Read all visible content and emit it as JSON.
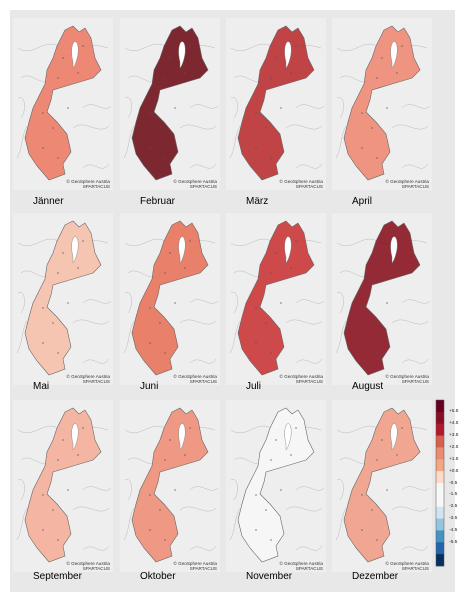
{
  "credit": {
    "line1": "© GeoSphere Austria",
    "line2": "SPARTACUS"
  },
  "months": [
    {
      "label": "Jänner",
      "fill": "#ec7f69",
      "opacity": 0.92
    },
    {
      "label": "Februar",
      "fill": "#761c25",
      "opacity": 0.95
    },
    {
      "label": "März",
      "fill": "#bc3436",
      "opacity": 0.92
    },
    {
      "label": "April",
      "fill": "#ee8a73",
      "opacity": 0.9
    },
    {
      "label": "Mai",
      "fill": "#f6c1ad",
      "opacity": 0.92
    },
    {
      "label": "Juni",
      "fill": "#e8765e",
      "opacity": 0.92
    },
    {
      "label": "Juli",
      "fill": "#cb3c3c",
      "opacity": 0.92
    },
    {
      "label": "August",
      "fill": "#8e1f2a",
      "opacity": 0.95
    },
    {
      "label": "September",
      "fill": "#f4b19b",
      "opacity": 0.92
    },
    {
      "label": "Oktober",
      "fill": "#ef9079",
      "opacity": 0.92
    },
    {
      "label": "November",
      "fill": "#f5f5f5",
      "opacity": 0.95
    },
    {
      "label": "Dezember",
      "fill": "#f1a089",
      "opacity": 0.92
    }
  ],
  "legend": {
    "labels": [
      "+5.5",
      "+4.5",
      "+3.5",
      "+2.5",
      "+1.5",
      "+0.5",
      "-0.5",
      "-1.5",
      "-2.5",
      "-3.5",
      "-4.5",
      "-5.5"
    ],
    "colors": [
      "#67001f",
      "#8b0d25",
      "#b2182b",
      "#d6604d",
      "#ec8a71",
      "#f4a582",
      "#fddbc7",
      "#f7f7f7",
      "#f7f7f7",
      "#d1e5f0",
      "#92c5de",
      "#4393c3",
      "#2166ac",
      "#053061"
    ]
  }
}
